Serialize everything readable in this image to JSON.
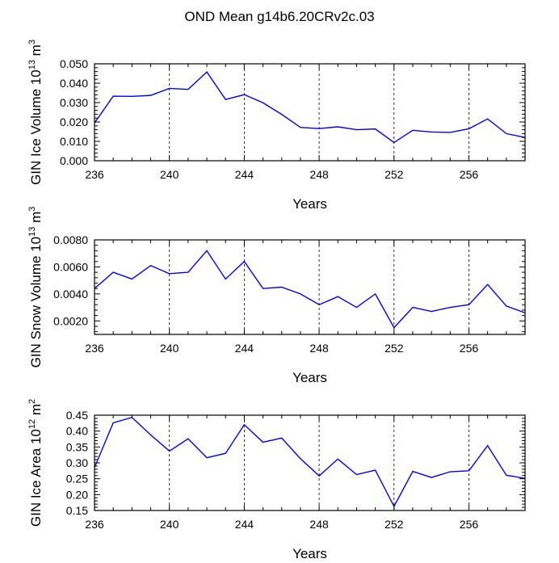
{
  "title": "OND Mean g14b6.20CRv2c.03",
  "line_color": "#0000ff",
  "chart_data": [
    {
      "type": "line",
      "ylabel": {
        "main": "GIN Ice Volume 10",
        "exp": "13",
        "unit": " m",
        "unit_exp": "3"
      },
      "xlabel": "Years",
      "xlim": [
        236,
        259
      ],
      "ylim": [
        0.0,
        0.05
      ],
      "xticks": [
        236,
        240,
        244,
        248,
        252,
        256
      ],
      "yticks": [
        0.0,
        0.01,
        0.02,
        0.03,
        0.04,
        0.05
      ],
      "ytick_labels": [
        "0.000",
        "0.010",
        "0.020",
        "0.030",
        "0.040",
        "0.050"
      ],
      "x": [
        236,
        237,
        238,
        239,
        240,
        241,
        242,
        243,
        244,
        245,
        246,
        247,
        248,
        249,
        250,
        251,
        252,
        253,
        254,
        255,
        256,
        257,
        258,
        259
      ],
      "values": [
        0.0195,
        0.0333,
        0.0332,
        0.0337,
        0.0373,
        0.0368,
        0.0458,
        0.0316,
        0.0341,
        0.0299,
        0.0239,
        0.0172,
        0.0166,
        0.0175,
        0.016,
        0.0164,
        0.0094,
        0.0157,
        0.0148,
        0.0146,
        0.0165,
        0.0216,
        0.014,
        0.012
      ]
    },
    {
      "type": "line",
      "ylabel": {
        "main": "GIN Snow Volume 10",
        "exp": "13",
        "unit": " m",
        "unit_exp": "3"
      },
      "xlabel": "Years",
      "xlim": [
        236,
        259
      ],
      "ylim": [
        0.001,
        0.008
      ],
      "xticks": [
        236,
        240,
        244,
        248,
        252,
        256
      ],
      "yticks": [
        0.002,
        0.004,
        0.006,
        0.008
      ],
      "ytick_labels": [
        "0.0020",
        "0.0040",
        "0.0060",
        "0.0080"
      ],
      "x": [
        236,
        237,
        238,
        239,
        240,
        241,
        242,
        243,
        244,
        245,
        246,
        247,
        248,
        249,
        250,
        251,
        252,
        253,
        254,
        255,
        256,
        257,
        258,
        259
      ],
      "values": [
        0.0044,
        0.0056,
        0.0051,
        0.0061,
        0.0055,
        0.0056,
        0.0072,
        0.0051,
        0.0064,
        0.0044,
        0.0045,
        0.004,
        0.0032,
        0.0038,
        0.003,
        0.004,
        0.0015,
        0.003,
        0.0027,
        0.003,
        0.0032,
        0.0047,
        0.0031,
        0.0026
      ]
    },
    {
      "type": "line",
      "ylabel": {
        "main": "GIN Ice Area 10",
        "exp": "12",
        "unit": " m",
        "unit_exp": "2"
      },
      "xlabel": "Years",
      "xlim": [
        236,
        259
      ],
      "ylim": [
        0.15,
        0.45
      ],
      "xticks": [
        236,
        240,
        244,
        248,
        252,
        256
      ],
      "yticks": [
        0.15,
        0.2,
        0.25,
        0.3,
        0.35,
        0.4,
        0.45
      ],
      "ytick_labels": [
        "0.15",
        "0.20",
        "0.25",
        "0.30",
        "0.35",
        "0.40",
        "0.45"
      ],
      "x": [
        236,
        237,
        238,
        239,
        240,
        241,
        242,
        243,
        244,
        245,
        246,
        247,
        248,
        249,
        250,
        251,
        252,
        253,
        254,
        255,
        256,
        257,
        258,
        259
      ],
      "values": [
        0.285,
        0.426,
        0.443,
        0.388,
        0.337,
        0.376,
        0.316,
        0.33,
        0.42,
        0.365,
        0.378,
        0.313,
        0.259,
        0.312,
        0.263,
        0.277,
        0.163,
        0.273,
        0.254,
        0.272,
        0.275,
        0.354,
        0.261,
        0.251
      ]
    }
  ]
}
